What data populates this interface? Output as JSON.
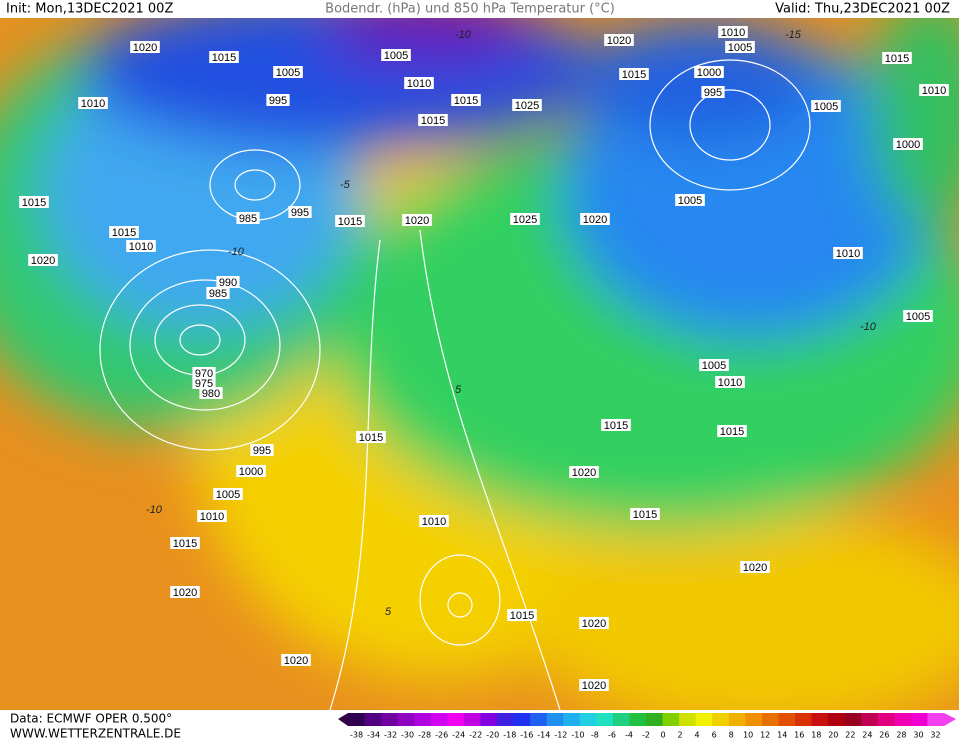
{
  "header": {
    "init": "Init: Mon,13DEC2021 00Z",
    "title": "Bodendr. (hPa) und 850 hPa Temperatur (°C)",
    "valid": "Valid: Thu,23DEC2021 00Z"
  },
  "footer": {
    "data": "Data: ECMWF OPER 0.500°",
    "site": "WWW.WETTERZENTRALE.DE"
  },
  "scale_labels": [
    "-38",
    "-34",
    "-32",
    "-30",
    "-28",
    "-26",
    "-24",
    "-22",
    "-20",
    "-18",
    "-16",
    "-14",
    "-12",
    "-10",
    "-8",
    "-6",
    "-4",
    "-2",
    "0",
    "2",
    "4",
    "6",
    "8",
    "10",
    "12",
    "14",
    "16",
    "18",
    "20",
    "22",
    "24",
    "26",
    "28",
    "30",
    "32"
  ],
  "isobar_labels": [
    "1020",
    "1015",
    "1010",
    "1015",
    "1015",
    "1010",
    "1020",
    "995",
    "1005",
    "985",
    "995",
    "990",
    "985",
    "970",
    "975",
    "980",
    "995",
    "1000",
    "1005",
    "1010",
    "1015",
    "1020",
    "1020",
    "1015",
    "1020",
    "1005",
    "1010",
    "1015",
    "1015",
    "1025",
    "1025",
    "1020",
    "1020",
    "1015",
    "1010",
    "1005",
    "1000",
    "995",
    "1005",
    "1015",
    "1010",
    "1000",
    "1005",
    "1010",
    "1005",
    "1005",
    "1010",
    "1015",
    "1015",
    "1015",
    "1020",
    "1010",
    "1015",
    "1020",
    "1015",
    "1020",
    "1020"
  ],
  "temperature_labels": [
    "-10",
    "-15",
    "-10",
    "-5",
    "5",
    "-10",
    "5",
    "-10"
  ]
}
